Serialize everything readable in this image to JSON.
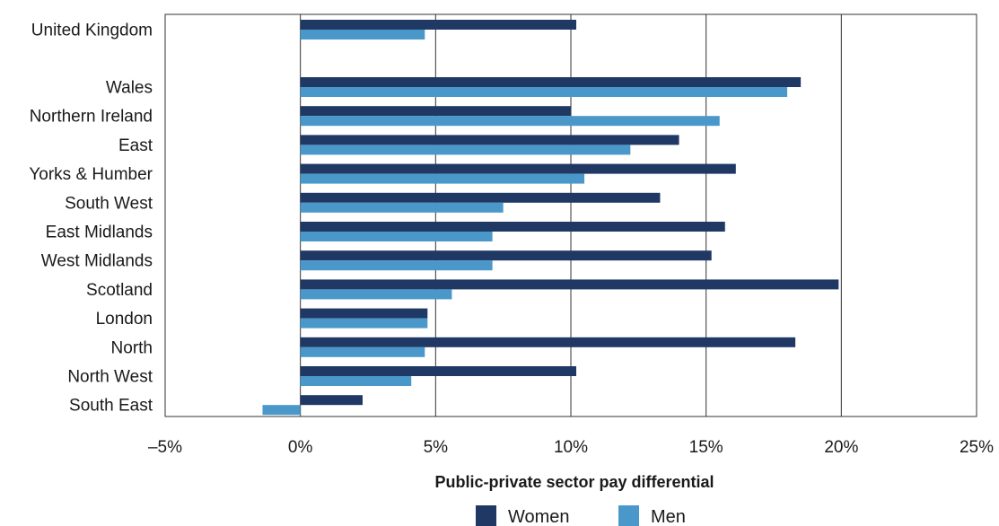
{
  "chart_data": {
    "type": "bar",
    "orientation": "horizontal",
    "xlabel": "Public-private sector pay differential",
    "xlim": [
      -5,
      25
    ],
    "xticks": [
      -5,
      0,
      5,
      10,
      15,
      20,
      25
    ],
    "xtick_labels": [
      "–5%",
      "0%",
      "5%",
      "10%",
      "15%",
      "20%",
      "25%"
    ],
    "grid": "vertical",
    "legend_position": "bottom",
    "categories": [
      "United Kingdom",
      "Wales",
      "Northern Ireland",
      "East",
      "Yorks & Humber",
      "South West",
      "East Midlands",
      "West Midlands",
      "Scotland",
      "London",
      "North",
      "North West",
      "South East"
    ],
    "series": [
      {
        "name": "Women",
        "color": "#1f3864",
        "values": [
          10.2,
          18.5,
          10.0,
          14.0,
          16.1,
          13.3,
          15.7,
          15.2,
          19.9,
          4.7,
          18.3,
          10.2,
          2.3
        ]
      },
      {
        "name": "Men",
        "color": "#4a98c9",
        "values": [
          4.6,
          18.0,
          15.5,
          12.2,
          10.5,
          7.5,
          7.1,
          7.1,
          5.6,
          4.7,
          4.6,
          4.1,
          -1.4
        ]
      }
    ]
  }
}
